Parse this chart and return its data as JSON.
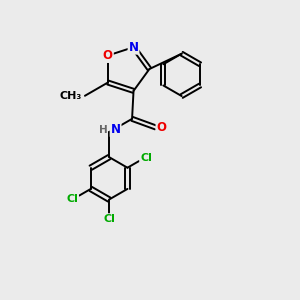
{
  "bg_color": "#ebebeb",
  "atom_colors": {
    "C": "#000000",
    "N": "#0000ee",
    "O": "#ee0000",
    "Cl": "#00aa00",
    "H": "#666666"
  },
  "lw": 1.4,
  "fs_hetero": 8.5,
  "fs_cl": 8.0,
  "fs_methyl": 8.0
}
